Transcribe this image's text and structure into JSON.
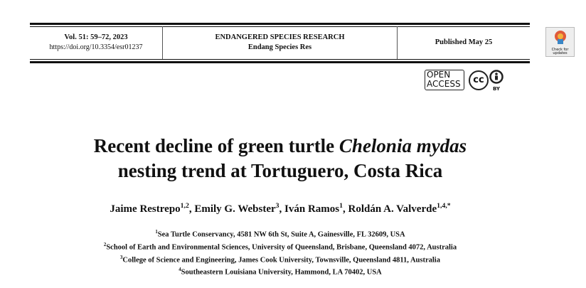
{
  "header": {
    "volume": "Vol. 51: 59–72, 2023",
    "doi": "https://doi.org/10.3354/esr01237",
    "journal": "ENDANGERED SPECIES RESEARCH",
    "journal_abbrev": "Endang Species Res",
    "published": "Published May 25"
  },
  "badges": {
    "open": "OPEN",
    "access": "ACCESS",
    "cc": "cc",
    "by": "BY",
    "check": "Check for updates"
  },
  "title": {
    "line1": "Recent decline of green turtle",
    "species": "Chelonia mydas",
    "line2": "nesting trend at Tortuguero, Costa Rica"
  },
  "authors": [
    {
      "name": "Jaime Restrepo",
      "affil": "1,2",
      "sep": ","
    },
    {
      "name": "Emily G. Webster",
      "affil": "3",
      "sep": ","
    },
    {
      "name": "Iván Ramos",
      "affil": "1",
      "sep": ","
    },
    {
      "name": "Roldán A. Valverde",
      "affil": "1,4,*"
    }
  ],
  "affiliations": [
    {
      "num": "1",
      "text": "Sea Turtle Conservancy, 4581 NW 6th St, Suite A, Gainesville, FL 32609, USA"
    },
    {
      "num": "2",
      "text": "School of Earth and Environmental Sciences, University of Queensland, Brisbane, Queensland 4072, Australia"
    },
    {
      "num": "3",
      "text": "College of Science and Engineering, James Cook University, Townsville, Queensland 4811, Australia"
    },
    {
      "num": "4",
      "text": "Southeastern Louisiana University, Hammond, LA 70402, USA"
    }
  ]
}
